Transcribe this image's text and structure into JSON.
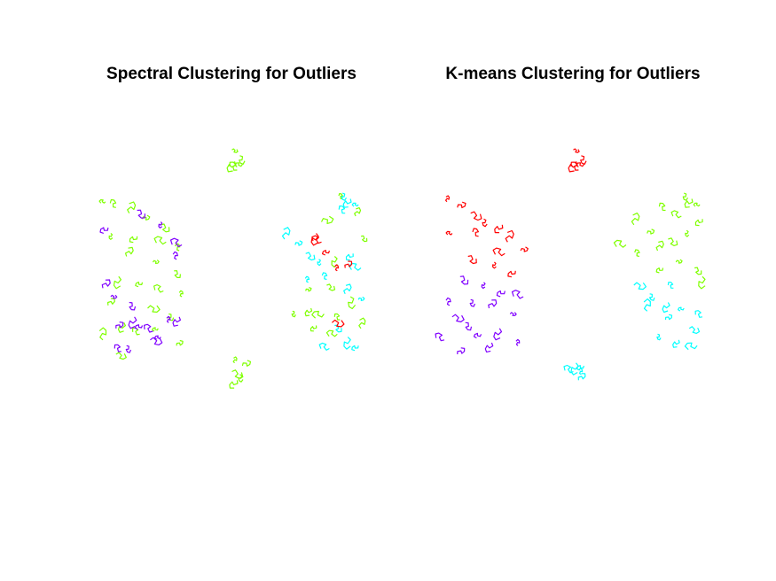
{
  "chart_data": [
    {
      "type": "scatter",
      "title": "Spectral Clustering for Outliers",
      "xlabel": "",
      "ylabel": "",
      "xlim": [
        0,
        10
      ],
      "ylim": [
        0,
        10
      ],
      "grid": false,
      "axes_visible": false,
      "series": [
        {
          "color": "#7fff00",
          "points": [
            [
              5.0,
              9.1
            ],
            [
              5.3,
              8.9
            ],
            [
              5.1,
              8.7
            ],
            [
              5.4,
              8.6
            ],
            [
              5.2,
              8.4
            ],
            [
              5.1,
              1.7
            ],
            [
              5.4,
              1.6
            ],
            [
              5.0,
              1.4
            ],
            [
              5.3,
              1.3
            ],
            [
              5.2,
              1.1
            ],
            [
              0.2,
              7.3
            ],
            [
              0.6,
              7.1
            ],
            [
              1.1,
              6.9
            ],
            [
              1.6,
              6.7
            ],
            [
              2.3,
              6.5
            ],
            [
              0.4,
              6.2
            ],
            [
              1.4,
              6.1
            ],
            [
              2.5,
              5.9
            ],
            [
              3.0,
              5.6
            ],
            [
              1.0,
              5.4
            ],
            [
              2.0,
              5.2
            ],
            [
              2.8,
              4.9
            ],
            [
              0.7,
              4.7
            ],
            [
              1.6,
              4.5
            ],
            [
              2.4,
              4.2
            ],
            [
              3.1,
              4.0
            ],
            [
              0.3,
              3.7
            ],
            [
              1.8,
              3.6
            ],
            [
              2.6,
              3.4
            ],
            [
              0.9,
              3.1
            ],
            [
              2.2,
              2.9
            ],
            [
              1.5,
              2.7
            ],
            [
              0.1,
              2.5
            ],
            [
              2.9,
              2.3
            ],
            [
              0.6,
              2.0
            ],
            [
              7.3,
              3.5
            ],
            [
              8.0,
              3.6
            ],
            [
              8.5,
              3.4
            ],
            [
              9.1,
              3.2
            ],
            [
              9.9,
              2.9
            ],
            [
              7.8,
              4.2
            ],
            [
              8.6,
              4.4
            ],
            [
              9.5,
              4.0
            ],
            [
              8.2,
              3.0
            ],
            [
              9.0,
              2.7
            ],
            [
              9.2,
              7.4
            ],
            [
              9.7,
              6.8
            ],
            [
              8.4,
              6.6
            ],
            [
              9.9,
              6.1
            ],
            [
              8.9,
              5.4
            ]
          ]
        },
        {
          "color": "#8000ff",
          "points": [
            [
              1.4,
              7.0
            ],
            [
              2.3,
              6.6
            ],
            [
              0.3,
              6.4
            ],
            [
              3.1,
              5.8
            ],
            [
              2.9,
              5.3
            ],
            [
              0.1,
              4.3
            ],
            [
              0.4,
              4.0
            ],
            [
              1.1,
              3.8
            ],
            [
              1.3,
              3.3
            ],
            [
              1.6,
              3.0
            ],
            [
              2.0,
              2.8
            ],
            [
              2.6,
              3.1
            ],
            [
              0.6,
              2.9
            ],
            [
              1.9,
              2.5
            ],
            [
              1.0,
              2.3
            ],
            [
              3.0,
              3.3
            ],
            [
              2.3,
              2.6
            ],
            [
              0.8,
              2.1
            ]
          ]
        },
        {
          "color": "#00ffff",
          "points": [
            [
              9.2,
              7.6
            ],
            [
              9.5,
              7.4
            ],
            [
              9.8,
              7.2
            ],
            [
              9.3,
              6.9
            ],
            [
              7.0,
              6.0
            ],
            [
              7.4,
              5.8
            ],
            [
              7.8,
              5.5
            ],
            [
              8.3,
              5.3
            ],
            [
              9.6,
              5.5
            ],
            [
              9.9,
              5.0
            ],
            [
              8.6,
              4.6
            ],
            [
              9.3,
              4.1
            ],
            [
              9.8,
              3.9
            ],
            [
              8.9,
              3.0
            ],
            [
              9.4,
              2.6
            ],
            [
              9.8,
              2.3
            ],
            [
              8.7,
              2.2
            ],
            [
              7.9,
              4.5
            ]
          ]
        },
        {
          "color": "#ff0000",
          "points": [
            [
              8.2,
              6.2
            ],
            [
              8.7,
              5.6
            ],
            [
              8.4,
              5.9
            ],
            [
              9.0,
              4.9
            ],
            [
              9.3,
              5.0
            ],
            [
              8.8,
              3.1
            ]
          ]
        }
      ]
    },
    {
      "type": "scatter",
      "title": "K-means Clustering for Outliers",
      "xlabel": "",
      "ylabel": "",
      "xlim": [
        0,
        10
      ],
      "ylim": [
        0,
        10
      ],
      "grid": false,
      "axes_visible": false,
      "series": [
        {
          "color": "#ff0000",
          "points": [
            [
              5.0,
              9.1
            ],
            [
              5.3,
              8.9
            ],
            [
              5.1,
              8.7
            ],
            [
              5.4,
              8.6
            ],
            [
              5.2,
              8.4
            ],
            [
              0.2,
              7.3
            ],
            [
              0.6,
              7.1
            ],
            [
              1.1,
              6.9
            ],
            [
              1.6,
              6.7
            ],
            [
              2.3,
              6.5
            ],
            [
              0.4,
              6.2
            ],
            [
              1.4,
              6.1
            ],
            [
              2.5,
              5.9
            ],
            [
              3.0,
              5.6
            ],
            [
              1.0,
              5.4
            ],
            [
              2.0,
              5.2
            ],
            [
              2.8,
              4.9
            ],
            [
              2.4,
              5.5
            ]
          ]
        },
        {
          "color": "#8000ff",
          "points": [
            [
              0.7,
              4.7
            ],
            [
              1.6,
              4.5
            ],
            [
              2.4,
              4.2
            ],
            [
              3.1,
              4.0
            ],
            [
              0.3,
              3.7
            ],
            [
              1.8,
              3.6
            ],
            [
              2.6,
              3.4
            ],
            [
              0.9,
              3.1
            ],
            [
              2.2,
              2.9
            ],
            [
              1.5,
              2.7
            ],
            [
              0.1,
              2.5
            ],
            [
              2.9,
              2.3
            ],
            [
              0.6,
              2.0
            ],
            [
              0.4,
              3.3
            ],
            [
              1.1,
              3.9
            ],
            [
              1.9,
              2.4
            ]
          ]
        },
        {
          "color": "#7fff00",
          "points": [
            [
              9.2,
              7.6
            ],
            [
              9.5,
              7.4
            ],
            [
              9.8,
              7.2
            ],
            [
              8.5,
              7.0
            ],
            [
              7.3,
              6.5
            ],
            [
              7.8,
              6.2
            ],
            [
              8.6,
              6.0
            ],
            [
              9.3,
              6.3
            ],
            [
              9.9,
              6.7
            ],
            [
              7.0,
              5.8
            ],
            [
              7.5,
              5.4
            ],
            [
              8.2,
              5.6
            ],
            [
              8.9,
              5.2
            ],
            [
              9.6,
              5.0
            ],
            [
              9.9,
              4.7
            ],
            [
              8.4,
              5.0
            ],
            [
              9.1,
              6.8
            ]
          ]
        },
        {
          "color": "#00ffff",
          "points": [
            [
              5.1,
              1.7
            ],
            [
              5.4,
              1.6
            ],
            [
              5.0,
              1.4
            ],
            [
              5.3,
              1.3
            ],
            [
              5.2,
              1.1
            ],
            [
              7.3,
              4.4
            ],
            [
              7.9,
              4.1
            ],
            [
              8.6,
              3.8
            ],
            [
              9.2,
              3.6
            ],
            [
              9.9,
              3.3
            ],
            [
              7.8,
              3.5
            ],
            [
              8.5,
              3.2
            ],
            [
              9.4,
              2.9
            ],
            [
              8.2,
              2.7
            ],
            [
              9.0,
              2.5
            ],
            [
              9.7,
              2.3
            ],
            [
              8.8,
              4.3
            ]
          ]
        }
      ]
    }
  ]
}
